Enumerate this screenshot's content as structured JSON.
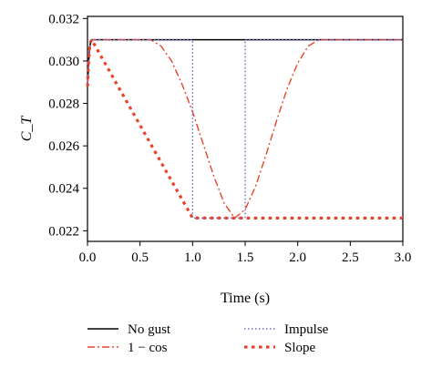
{
  "chart_data": {
    "type": "line",
    "xlabel": "Time (s)",
    "ylabel": "C_T",
    "xlim": [
      0,
      3.0
    ],
    "ylim": [
      0.0215,
      0.0321
    ],
    "xticks": [
      "0.0",
      "0.5",
      "1.0",
      "1.5",
      "2.0",
      "2.5",
      "3.0"
    ],
    "yticks": [
      "0.022",
      "0.024",
      "0.026",
      "0.028",
      "0.030",
      "0.032"
    ],
    "grid": false,
    "legend_position": "bottom",
    "series": [
      {
        "name": "No gust",
        "color": "#000000",
        "style": "solid",
        "x": [
          0,
          0.01,
          0.02,
          0.03,
          0.04,
          3.0
        ],
        "y": [
          0.0288,
          0.0299,
          0.0306,
          0.0309,
          0.031,
          0.031
        ]
      },
      {
        "name": "1 − cos",
        "color": "#e8442b",
        "style": "dashdot",
        "x": [
          0,
          0.01,
          0.02,
          0.03,
          0.04,
          0.6,
          0.7,
          0.8,
          0.9,
          1.0,
          1.1,
          1.2,
          1.3,
          1.4,
          1.5,
          1.6,
          1.7,
          1.8,
          1.9,
          2.0,
          2.1,
          2.2,
          3.0
        ],
        "y": [
          0.0288,
          0.0299,
          0.0306,
          0.0309,
          0.031,
          0.031,
          0.0307,
          0.03,
          0.0289,
          0.0276,
          0.0261,
          0.0246,
          0.0233,
          0.0226,
          0.023,
          0.0241,
          0.0256,
          0.0272,
          0.0287,
          0.0299,
          0.0307,
          0.031,
          0.031
        ]
      },
      {
        "name": "Impulse",
        "color": "#6666cc",
        "style": "dotted",
        "x": [
          0,
          0.01,
          0.02,
          0.03,
          0.04,
          1.0,
          1.0,
          1.5,
          1.5,
          3.0
        ],
        "y": [
          0.0288,
          0.0299,
          0.0306,
          0.0309,
          0.031,
          0.031,
          0.0226,
          0.0226,
          0.031,
          0.031
        ]
      },
      {
        "name": "Slope",
        "color": "#e8442b",
        "style": "dashed",
        "x": [
          0,
          0.01,
          0.02,
          0.03,
          0.04,
          1.0,
          3.0
        ],
        "y": [
          0.0288,
          0.0299,
          0.0306,
          0.0309,
          0.031,
          0.0226,
          0.0226
        ]
      }
    ]
  }
}
